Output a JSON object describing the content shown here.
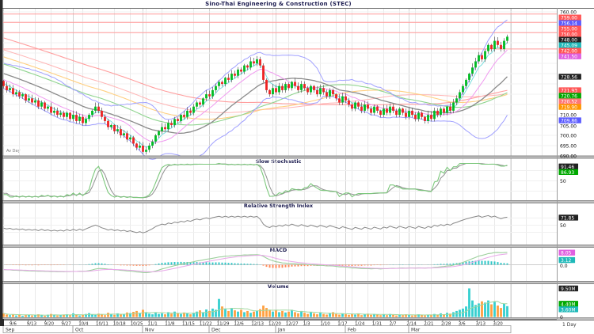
{
  "window": {
    "title": "Sino-Thai Engineering & Construction (STEC)",
    "period_label": "1 Day",
    "footnote": "Av Day"
  },
  "chart_data": {
    "type": "candlestick-multi-panel",
    "title": "Sino-Thai Engineering & Construction (STEC)",
    "price_axis": {
      "min": 690,
      "max": 762,
      "plain_labels": [
        760,
        710,
        705,
        700,
        695,
        690
      ]
    },
    "resistance_levels": [
      759,
      755,
      750,
      742
    ],
    "history_spec": {
      "count": 120,
      "from": 780,
      "to": 725,
      "wobble": 1.5
    },
    "closes": [
      724,
      722,
      723,
      720,
      721,
      719,
      720,
      717,
      718,
      716,
      717,
      714,
      716,
      713,
      714,
      711,
      712,
      710,
      711,
      709,
      711,
      708,
      710,
      707,
      709,
      706,
      708,
      710,
      712,
      714,
      712,
      709,
      707,
      704,
      705,
      702,
      703,
      700,
      701,
      698,
      699,
      696,
      694,
      695,
      692,
      693,
      695,
      697,
      700,
      702,
      704,
      703,
      706,
      705,
      708,
      707,
      710,
      709,
      712,
      711,
      714,
      716,
      715,
      718,
      720,
      719,
      722,
      724,
      726,
      725,
      728,
      727,
      730,
      729,
      732,
      731,
      734,
      733,
      736,
      735,
      737,
      734,
      727,
      722,
      720,
      723,
      721,
      724,
      722,
      725,
      723,
      726,
      724,
      722,
      725,
      723,
      721,
      724,
      722,
      720,
      723,
      721,
      719,
      722,
      720,
      718,
      716,
      719,
      717,
      715,
      713,
      716,
      714,
      712,
      715,
      713,
      711,
      714,
      712,
      710,
      713,
      711,
      714,
      712,
      710,
      713,
      711,
      709,
      712,
      710,
      708,
      711,
      709,
      707,
      710,
      708,
      712,
      710,
      713,
      711,
      714,
      712,
      716,
      718,
      721,
      724,
      727,
      730,
      733,
      736,
      739,
      737,
      741,
      744,
      742,
      746,
      744,
      742,
      746,
      748
    ],
    "volumes": [
      12,
      8,
      6,
      9,
      5,
      7,
      4,
      6,
      8,
      5,
      7,
      9,
      6,
      4,
      8,
      10,
      7,
      5,
      6,
      8,
      9,
      6,
      12,
      8,
      5,
      7,
      10,
      13,
      9,
      7,
      11,
      8,
      6,
      14,
      9,
      7,
      12,
      10,
      8,
      15,
      13,
      17,
      20,
      12,
      24,
      16,
      11,
      9,
      14,
      10,
      12,
      9,
      16,
      11,
      18,
      13,
      10,
      15,
      12,
      9,
      14,
      18,
      22,
      16,
      25,
      20,
      28,
      24,
      60,
      35,
      26,
      20,
      30,
      22,
      18,
      24,
      16,
      20,
      14,
      18,
      20,
      26,
      38,
      30,
      24,
      18,
      22,
      16,
      20,
      15,
      18,
      24,
      16,
      12,
      20,
      14,
      10,
      16,
      12,
      9,
      14,
      10,
      8,
      12,
      16,
      10,
      8,
      12,
      9,
      7,
      10,
      8,
      12,
      6,
      9,
      11,
      7,
      10,
      8,
      6,
      8,
      6,
      10,
      7,
      5,
      8,
      6,
      9,
      7,
      5,
      6,
      9,
      7,
      5,
      8,
      6,
      10,
      8,
      12,
      9,
      14,
      11,
      16,
      20,
      24,
      28,
      35,
      95,
      55,
      40,
      45,
      52,
      48,
      55,
      42,
      50,
      38,
      30,
      44,
      36
    ],
    "overlays": [
      {
        "name": "SMA100",
        "type": "sma",
        "window": 100,
        "color": "#ff9e9e",
        "tag": "#ff5555"
      },
      {
        "name": "SMA75",
        "type": "sma",
        "window": 75,
        "color": "#ffb4b4",
        "tag": "#ff7777"
      },
      {
        "name": "SMA60",
        "type": "sma",
        "window": 60,
        "color": "#ffcf80",
        "tag": "#ff9500"
      },
      {
        "name": "SMA45",
        "type": "sma",
        "window": 45,
        "color": "#8fd48f",
        "tag": "#00a800"
      },
      {
        "name": "SMA25",
        "type": "sma",
        "window": 25,
        "color": "#8a8a8a",
        "tag": "#222222"
      },
      {
        "name": "SMA12",
        "type": "sma",
        "window": 12,
        "color": "#f09af0",
        "tag": "#e060e0"
      },
      {
        "name": "EMA5",
        "type": "ema",
        "window": 5,
        "color": "#7adede",
        "tag": "#1fb9b9"
      },
      {
        "name": "Bollinger(20,2)",
        "type": "bollinger",
        "window": 20,
        "mult": 2,
        "color": "#a0a0ff",
        "tag": "#5b5bff"
      }
    ],
    "panels": [
      {
        "id": "stoch",
        "title": "Slow Stochastic",
        "tags": [
          {
            "value": "91.46",
            "color": "#222222",
            "level": 91.46
          },
          {
            "value": "86.93",
            "color": "#00a800",
            "level": 86.93
          }
        ],
        "axis_labels": [
          {
            "value": "50",
            "level": 50
          }
        ]
      },
      {
        "id": "rsi",
        "title": "Relative Strength Index",
        "tags": [
          {
            "value": "71.85",
            "color": "#222222",
            "level": 71.85
          }
        ],
        "axis_labels": [
          {
            "value": "50",
            "level": 50
          }
        ]
      },
      {
        "id": "macd",
        "title": "MACD",
        "tags": [
          {
            "value": "8.05",
            "color": "#e060e0",
            "level": 8.05
          },
          {
            "value": "3.12",
            "color": "#1fb9b9",
            "level": 3.12
          }
        ],
        "axis_labels": [
          {
            "value": "0.0",
            "level": 0
          }
        ]
      },
      {
        "id": "volume",
        "title": "Volume",
        "tags": [
          {
            "value": "9.50M",
            "color": "#222222",
            "level": 95
          },
          {
            "value": "4.40M",
            "color": "#00a800",
            "level": 44
          },
          {
            "value": "3.60M",
            "color": "#1fb9b9",
            "level": 36
          }
        ],
        "axis_labels": [
          {
            "value": "0",
            "level": 0
          }
        ]
      }
    ],
    "x_axis": {
      "week_labels": [
        "9/6",
        "9/13",
        "9/20",
        "9/27",
        "10/4",
        "10/11",
        "10/18",
        "10/25",
        "11/1",
        "11/8",
        "11/15",
        "11/22",
        "11/29",
        "12/6",
        "12/13",
        "12/20",
        "12/27",
        "1/3",
        "1/10",
        "1/17",
        "1/24",
        "1/31",
        "2/7",
        "2/14",
        "2/21",
        "2/28",
        "3/6",
        "3/13",
        "3/20"
      ],
      "months": [
        "Sep",
        "Oct",
        "Nov",
        "Dec",
        "Jan",
        "Feb",
        "Mar"
      ],
      "month_boundaries": [
        4,
        92,
        180,
        264,
        348,
        436,
        516,
        645
      ]
    },
    "colors": {
      "up_candle": "#00bb22",
      "down_candle": "#ee2222",
      "wick": "#555555",
      "resistance": "#ff9999",
      "grid": "#e9e9e9",
      "grid_month": "#d2d2d2",
      "grid_h": "#f0f0f0",
      "volume_up": "#35cfcf",
      "volume_down": "#ffa040",
      "volume_ma": "#a0d8a0",
      "macd_hist_pos": "#2fc7c7",
      "macd_hist_neg": "#ff8a5a",
      "macd_line": "#9ccf9c",
      "macd_signal": "#e8a6e8",
      "stoch_k": "#7cc87c",
      "stoch_d": "#909090",
      "rsi_line": "#888888",
      "title_text": "#1a1a4e",
      "divider": "#c0c0c0",
      "spine": "#2a2a2a"
    }
  }
}
